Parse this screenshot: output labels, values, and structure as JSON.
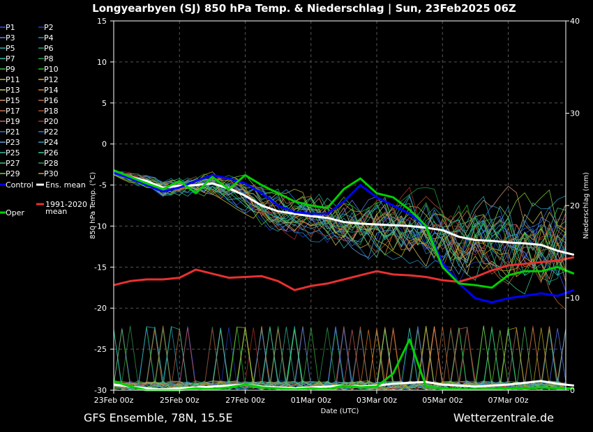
{
  "header": {
    "title": "Longyearbyen  (SJ)  850 hPa Temp. & Niederschlag | Sun, 23Feb2025 06Z"
  },
  "footer": {
    "left": "GFS Ensemble, 78N, 15.5E",
    "right": "Wetterzentrale.de"
  },
  "chart_data": {
    "type": "line",
    "title": "Longyearbyen  (SJ)  850 hPa Temp. & Niederschlag | Sun, 23Feb2025 06Z",
    "xlabel": "Date (UTC)",
    "ylabel": "850 hPa Temp. (°C)",
    "y2label": "Niederschlag (mm)",
    "ylim": [
      -30,
      15
    ],
    "y2lim": [
      0,
      40
    ],
    "xlim": [
      "23Feb 00z",
      "08Mar 18z"
    ],
    "x_ticks": [
      "23Feb 00z",
      "25Feb 00z",
      "27Feb 00z",
      "01Mar 00z",
      "03Mar 00z",
      "05Mar 00z",
      "07Mar 00z"
    ],
    "y_ticks": [
      "15",
      "10",
      "5",
      "0",
      "-5",
      "-10",
      "-15",
      "-20",
      "-25",
      "-30"
    ],
    "y2_ticks": [
      "40",
      "30",
      "20",
      "10",
      "0"
    ],
    "grid": true,
    "legend_position": "left",
    "legend": {
      "perturbations": [
        {
          "name": "P1",
          "color": "#3050ff"
        },
        {
          "name": "P2",
          "color": "#2040d0"
        },
        {
          "name": "P3",
          "color": "#6080ff"
        },
        {
          "name": "P4",
          "color": "#2090d0"
        },
        {
          "name": "P5",
          "color": "#30b0b0"
        },
        {
          "name": "P6",
          "color": "#20a080"
        },
        {
          "name": "P7",
          "color": "#30c0a0"
        },
        {
          "name": "P8",
          "color": "#20a040"
        },
        {
          "name": "P9",
          "color": "#40c040"
        },
        {
          "name": "P10",
          "color": "#20c020"
        },
        {
          "name": "P11",
          "color": "#c0c040"
        },
        {
          "name": "P12",
          "color": "#d0b040"
        },
        {
          "name": "P13",
          "color": "#d0c060"
        },
        {
          "name": "P14",
          "color": "#e08020"
        },
        {
          "name": "P15",
          "color": "#d09070"
        },
        {
          "name": "P16",
          "color": "#c07040"
        },
        {
          "name": "P17",
          "color": "#d07050"
        },
        {
          "name": "P18",
          "color": "#b05030"
        },
        {
          "name": "P19",
          "color": "#d06060"
        },
        {
          "name": "P20",
          "color": "#b03030"
        },
        {
          "name": "P21",
          "color": "#3070d0"
        },
        {
          "name": "P22",
          "color": "#2080e0"
        },
        {
          "name": "P23",
          "color": "#60a0e0"
        },
        {
          "name": "P24",
          "color": "#30a0c0"
        },
        {
          "name": "P25",
          "color": "#30c0a0"
        },
        {
          "name": "P26",
          "color": "#30d090"
        },
        {
          "name": "P27",
          "color": "#50c070"
        },
        {
          "name": "P28",
          "color": "#30a050"
        },
        {
          "name": "P29",
          "color": "#80d040"
        },
        {
          "name": "P30",
          "color": "#c0b020"
        }
      ],
      "control": {
        "name": "Control",
        "color": "#0000ff"
      },
      "ens_mean": {
        "name": "Ens. mean",
        "color": "#ffffff"
      },
      "clim_mean": {
        "name_line1": "1991-2020",
        "name_line2": "mean",
        "color": "#e83030"
      },
      "oper": {
        "name": "Oper",
        "color": "#00d000"
      }
    },
    "series": [
      {
        "name": "Ens. mean",
        "color": "#ffffff",
        "x": [
          0,
          0.5,
          1,
          1.5,
          2,
          2.5,
          3,
          3.5,
          4,
          4.5,
          5,
          5.5,
          6,
          6.5,
          7,
          7.5,
          8,
          8.5,
          9,
          9.5,
          10,
          10.5,
          11,
          11.5,
          12,
          12.5,
          13,
          13.5,
          14
        ],
        "values": [
          -3.5,
          -4,
          -4.5,
          -5.3,
          -5.1,
          -5,
          -4.8,
          -5.4,
          -6.3,
          -7.5,
          -8.2,
          -8.5,
          -8.8,
          -9,
          -9.5,
          -9.7,
          -9.8,
          -9.9,
          -10,
          -10.2,
          -10.5,
          -11.3,
          -11.7,
          -11.8,
          -12,
          -12.1,
          -12.3,
          -13,
          -13.5
        ]
      },
      {
        "name": "Control",
        "color": "#0000ff",
        "x": [
          0,
          0.5,
          1,
          1.5,
          2,
          2.5,
          3,
          3.5,
          4,
          4.5,
          5,
          5.5,
          6,
          6.5,
          7,
          7.5,
          8,
          8.5,
          9,
          9.5,
          10,
          10.5,
          11,
          11.5,
          12,
          12.5,
          13,
          13.5,
          14
        ],
        "values": [
          -3.5,
          -4.2,
          -5,
          -5.8,
          -5.3,
          -4.5,
          -3.8,
          -4.2,
          -4.8,
          -6,
          -7.5,
          -8.3,
          -8.5,
          -8.5,
          -7,
          -5,
          -6.5,
          -7.5,
          -8.5,
          -10,
          -14.5,
          -17,
          -18.8,
          -19.3,
          -18.8,
          -18.5,
          -18.2,
          -18.5,
          -17.8
        ]
      },
      {
        "name": "Oper",
        "color": "#00d000",
        "x": [
          0,
          0.5,
          1,
          1.5,
          2,
          2.5,
          3,
          3.5,
          4,
          4.5,
          5,
          5.5,
          6,
          6.5,
          7,
          7.5,
          8,
          8.5,
          9,
          9.5,
          10,
          10.5,
          11,
          11.5,
          12,
          12.5,
          13,
          13.5,
          14
        ],
        "values": [
          -3.2,
          -4,
          -4.8,
          -5.5,
          -4.5,
          -6,
          -4,
          -5.5,
          -3.8,
          -5,
          -6,
          -7,
          -7.5,
          -7.8,
          -5.5,
          -4.2,
          -6,
          -6.5,
          -8,
          -10,
          -15,
          -17,
          -17.2,
          -17.5,
          -16,
          -15.5,
          -15.5,
          -15,
          -15.8
        ]
      },
      {
        "name": "1991-2020 mean",
        "color": "#e83030",
        "x": [
          0,
          0.5,
          1,
          1.5,
          2,
          2.5,
          3,
          3.5,
          4,
          4.5,
          5,
          5.5,
          6,
          6.5,
          7,
          7.5,
          8,
          8.5,
          9,
          9.5,
          10,
          10.5,
          11,
          11.5,
          12,
          12.5,
          13,
          13.5,
          14
        ],
        "values": [
          -17.2,
          -16.7,
          -16.5,
          -16.5,
          -16.3,
          -15.3,
          -15.8,
          -16.3,
          -16.2,
          -16.1,
          -16.7,
          -17.8,
          -17.3,
          -17,
          -16.5,
          -16,
          -15.5,
          -15.9,
          -16,
          -16.2,
          -16.6,
          -16.8,
          -16.2,
          -15.4,
          -14.8,
          -14.6,
          -14.4,
          -14.2,
          -13.8
        ]
      },
      {
        "name": "Oper precipitation (mm)",
        "axis": "y2",
        "color": "#00d000",
        "x": [
          0,
          0.5,
          1,
          1.5,
          2,
          2.5,
          3,
          3.5,
          4,
          4.5,
          5,
          5.5,
          6,
          6.5,
          7,
          7.5,
          8,
          8.5,
          9,
          9.5,
          10,
          10.5,
          11,
          11.5,
          12,
          12.5,
          13,
          13.5,
          14
        ],
        "values": [
          1,
          0.4,
          0,
          0,
          0,
          0.2,
          0.1,
          0.3,
          0.6,
          0.3,
          0.2,
          0.1,
          0.2,
          0.1,
          0.5,
          0.3,
          0.4,
          1.8,
          5.5,
          0.4,
          0.2,
          0.1,
          0.1,
          0.1,
          0.2,
          0.2,
          0.3,
          0.2,
          0.2
        ]
      },
      {
        "name": "Ens. mean precipitation (mm)",
        "axis": "y2",
        "color": "#ffffff",
        "x": [
          0,
          0.5,
          1,
          1.5,
          2,
          2.5,
          3,
          3.5,
          4,
          4.5,
          5,
          5.5,
          6,
          6.5,
          7,
          7.5,
          8,
          8.5,
          9,
          9.5,
          10,
          10.5,
          11,
          11.5,
          12,
          12.5,
          13,
          13.5,
          14
        ],
        "values": [
          0.6,
          0.4,
          0.2,
          0.1,
          0.2,
          0.3,
          0.4,
          0.5,
          0.6,
          0.4,
          0.3,
          0.2,
          0.3,
          0.4,
          0.5,
          0.4,
          0.5,
          0.7,
          0.8,
          0.9,
          0.6,
          0.5,
          0.4,
          0.5,
          0.6,
          0.8,
          1.0,
          0.7,
          0.5
        ]
      }
    ]
  }
}
